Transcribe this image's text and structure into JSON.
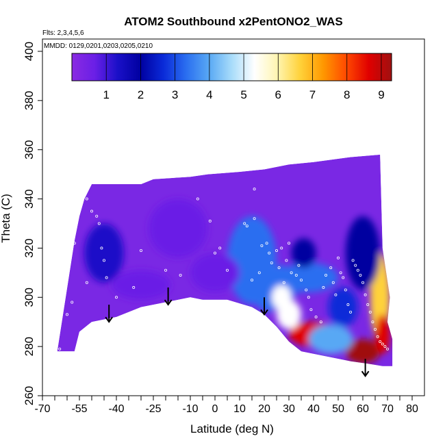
{
  "chart_data": {
    "type": "heatmap",
    "title": "ATOM2 Southbound x2PentONO2_WAS",
    "subtitle_flights": "Flts: 2,3,4,5,6",
    "subtitle_dates": "MMDD: 0129,0201,0203,0205,0210",
    "xlabel": "Latitude (deg N)",
    "ylabel": "Theta (C)",
    "xlim": [
      -70,
      85
    ],
    "ylim": [
      260,
      405
    ],
    "x_ticks": [
      -70,
      -55,
      -40,
      -25,
      -10,
      0,
      10,
      20,
      30,
      40,
      50,
      60,
      70,
      80
    ],
    "x_ticks_minor": [
      -70,
      -65,
      -60,
      -55,
      -50,
      -45,
      -40,
      -35,
      -30,
      -25,
      -20,
      -15,
      -10,
      -5,
      0,
      5,
      10,
      15,
      20,
      25,
      30,
      35,
      40,
      45,
      50,
      55,
      60,
      65,
      70,
      75,
      80
    ],
    "y_ticks": [
      260,
      280,
      300,
      320,
      340,
      360,
      380,
      400
    ],
    "colorbar": {
      "range": [
        0,
        9.3
      ],
      "ticks": [
        1,
        2,
        3,
        4,
        5,
        6,
        7,
        8,
        9
      ],
      "colors": [
        "#8a2be2",
        "#6a1fe6",
        "#1a10c8",
        "#0000a0",
        "#0a2ad8",
        "#2a6ef0",
        "#58a8f4",
        "#a8dcfa",
        "#ffffff",
        "#fff5b0",
        "#ffd23a",
        "#ff9800",
        "#ff4a00",
        "#e00000",
        "#a01010"
      ]
    },
    "envelope_top": [
      [
        -57,
        323
      ],
      [
        -55,
        333
      ],
      [
        -53,
        340
      ],
      [
        -50,
        346
      ],
      [
        -30,
        346
      ],
      [
        -25,
        348
      ],
      [
        -10,
        349
      ],
      [
        -3,
        350
      ],
      [
        10,
        351
      ],
      [
        20,
        352
      ],
      [
        30,
        354
      ],
      [
        40,
        355
      ],
      [
        55,
        357
      ],
      [
        67,
        358
      ]
    ],
    "envelope_bottom": [
      [
        -64,
        278
      ],
      [
        -57,
        278
      ],
      [
        -55,
        286
      ],
      [
        -50,
        290
      ],
      [
        -45,
        291
      ],
      [
        -40,
        292
      ],
      [
        -30,
        296
      ],
      [
        -20,
        298
      ],
      [
        -10,
        300
      ],
      [
        -5,
        299
      ],
      [
        5,
        299
      ],
      [
        15,
        296
      ],
      [
        20,
        293
      ],
      [
        25,
        288
      ],
      [
        30,
        282
      ],
      [
        35,
        278
      ],
      [
        45,
        276
      ],
      [
        55,
        274
      ],
      [
        62,
        273
      ],
      [
        68,
        272
      ],
      [
        72,
        272
      ],
      [
        72,
        283
      ],
      [
        70,
        290
      ],
      [
        71,
        300
      ],
      [
        68,
        320
      ],
      [
        67,
        358
      ]
    ],
    "patches": [
      {
        "x": 15,
        "y": 315,
        "sx": 10,
        "sy": 18,
        "v": 3.5
      },
      {
        "x": 22,
        "y": 300,
        "sx": 6,
        "sy": 6,
        "v": 3.3
      },
      {
        "x": 27,
        "y": 305,
        "sx": 7,
        "sy": 8,
        "v": 3.5
      },
      {
        "x": 38,
        "y": 308,
        "sx": 12,
        "sy": 6,
        "v": 3.2
      },
      {
        "x": 40,
        "y": 285,
        "sx": 10,
        "sy": 5,
        "v": 8.5
      },
      {
        "x": 30,
        "y": 293,
        "sx": 5,
        "sy": 6,
        "v": 5.5
      },
      {
        "x": 27,
        "y": 300,
        "sx": 4,
        "sy": 5,
        "v": 5.0
      },
      {
        "x": 52,
        "y": 296,
        "sx": 6,
        "sy": 8,
        "v": 3.0
      },
      {
        "x": 60,
        "y": 278,
        "sx": 7,
        "sy": 5,
        "v": 8.8
      },
      {
        "x": 67,
        "y": 300,
        "sx": 4,
        "sy": 18,
        "v": 6.5
      },
      {
        "x": 68,
        "y": 285,
        "sx": 3,
        "sy": 8,
        "v": 8.5
      },
      {
        "x": 60,
        "y": 318,
        "sx": 7,
        "sy": 15,
        "v": 2.2
      },
      {
        "x": 47,
        "y": 283,
        "sx": 9,
        "sy": 6,
        "v": 4.2
      },
      {
        "x": -45,
        "y": 318,
        "sx": 8,
        "sy": 12,
        "v": 1.5
      },
      {
        "x": -15,
        "y": 328,
        "sx": 12,
        "sy": 12,
        "v": 1.2
      },
      {
        "x": 0,
        "y": 310,
        "sx": 10,
        "sy": 8,
        "v": 1.0
      },
      {
        "x": -30,
        "y": 305,
        "sx": 12,
        "sy": 6,
        "v": 0.8
      },
      {
        "x": 36,
        "y": 318,
        "sx": 5,
        "sy": 6,
        "v": 2.0
      }
    ],
    "observation_points": [
      [
        -65,
        290
      ],
      [
        -64,
        285
      ],
      [
        -58,
        325
      ],
      [
        -57,
        322
      ],
      [
        -52,
        340
      ],
      [
        -50,
        335
      ],
      [
        -48,
        333
      ],
      [
        -47,
        330
      ],
      [
        -46,
        320
      ],
      [
        -45,
        315
      ],
      [
        -44,
        308
      ],
      [
        -52,
        306
      ],
      [
        -58,
        298
      ],
      [
        -60,
        293
      ],
      [
        -63,
        279
      ],
      [
        -49,
        284
      ],
      [
        -40,
        300
      ],
      [
        -35,
        292
      ],
      [
        -33,
        304
      ],
      [
        -30,
        319
      ],
      [
        -20,
        311
      ],
      [
        -14,
        309
      ],
      [
        -7,
        340
      ],
      [
        -2,
        331
      ],
      [
        0,
        318
      ],
      [
        2,
        320
      ],
      [
        5,
        311
      ],
      [
        12,
        330
      ],
      [
        13,
        329
      ],
      [
        15,
        307
      ],
      [
        16,
        332
      ],
      [
        16,
        344
      ],
      [
        18,
        310
      ],
      [
        19,
        321
      ],
      [
        21,
        322
      ],
      [
        22,
        318
      ],
      [
        23,
        314
      ],
      [
        25,
        319
      ],
      [
        26,
        312
      ],
      [
        27,
        320
      ],
      [
        28,
        306
      ],
      [
        29,
        315
      ],
      [
        30,
        322
      ],
      [
        31,
        310
      ],
      [
        33,
        309
      ],
      [
        34,
        313
      ],
      [
        35,
        307
      ],
      [
        37,
        303
      ],
      [
        38,
        300
      ],
      [
        39,
        295
      ],
      [
        41,
        292
      ],
      [
        43,
        290
      ],
      [
        44,
        304
      ],
      [
        45,
        309
      ],
      [
        47,
        312
      ],
      [
        48,
        306
      ],
      [
        49,
        301
      ],
      [
        50,
        316
      ],
      [
        51,
        310
      ],
      [
        52,
        308
      ],
      [
        53,
        303
      ],
      [
        54,
        297
      ],
      [
        55,
        294
      ],
      [
        56,
        315
      ],
      [
        57,
        313
      ],
      [
        58,
        311
      ],
      [
        59,
        309
      ],
      [
        60,
        306
      ],
      [
        61,
        301
      ],
      [
        62,
        297
      ],
      [
        63,
        294
      ],
      [
        64,
        290
      ],
      [
        65,
        287
      ],
      [
        66,
        284
      ],
      [
        67,
        282
      ],
      [
        68,
        281
      ],
      [
        69,
        280
      ],
      [
        70,
        279
      ]
    ],
    "arrows": [
      {
        "x": -43,
        "top": 297,
        "bottom": 290
      },
      {
        "x": -19,
        "top": 304,
        "bottom": 297
      },
      {
        "x": 20,
        "top": 300,
        "bottom": 293
      },
      {
        "x": 61,
        "top": 275,
        "bottom": 268
      }
    ]
  }
}
